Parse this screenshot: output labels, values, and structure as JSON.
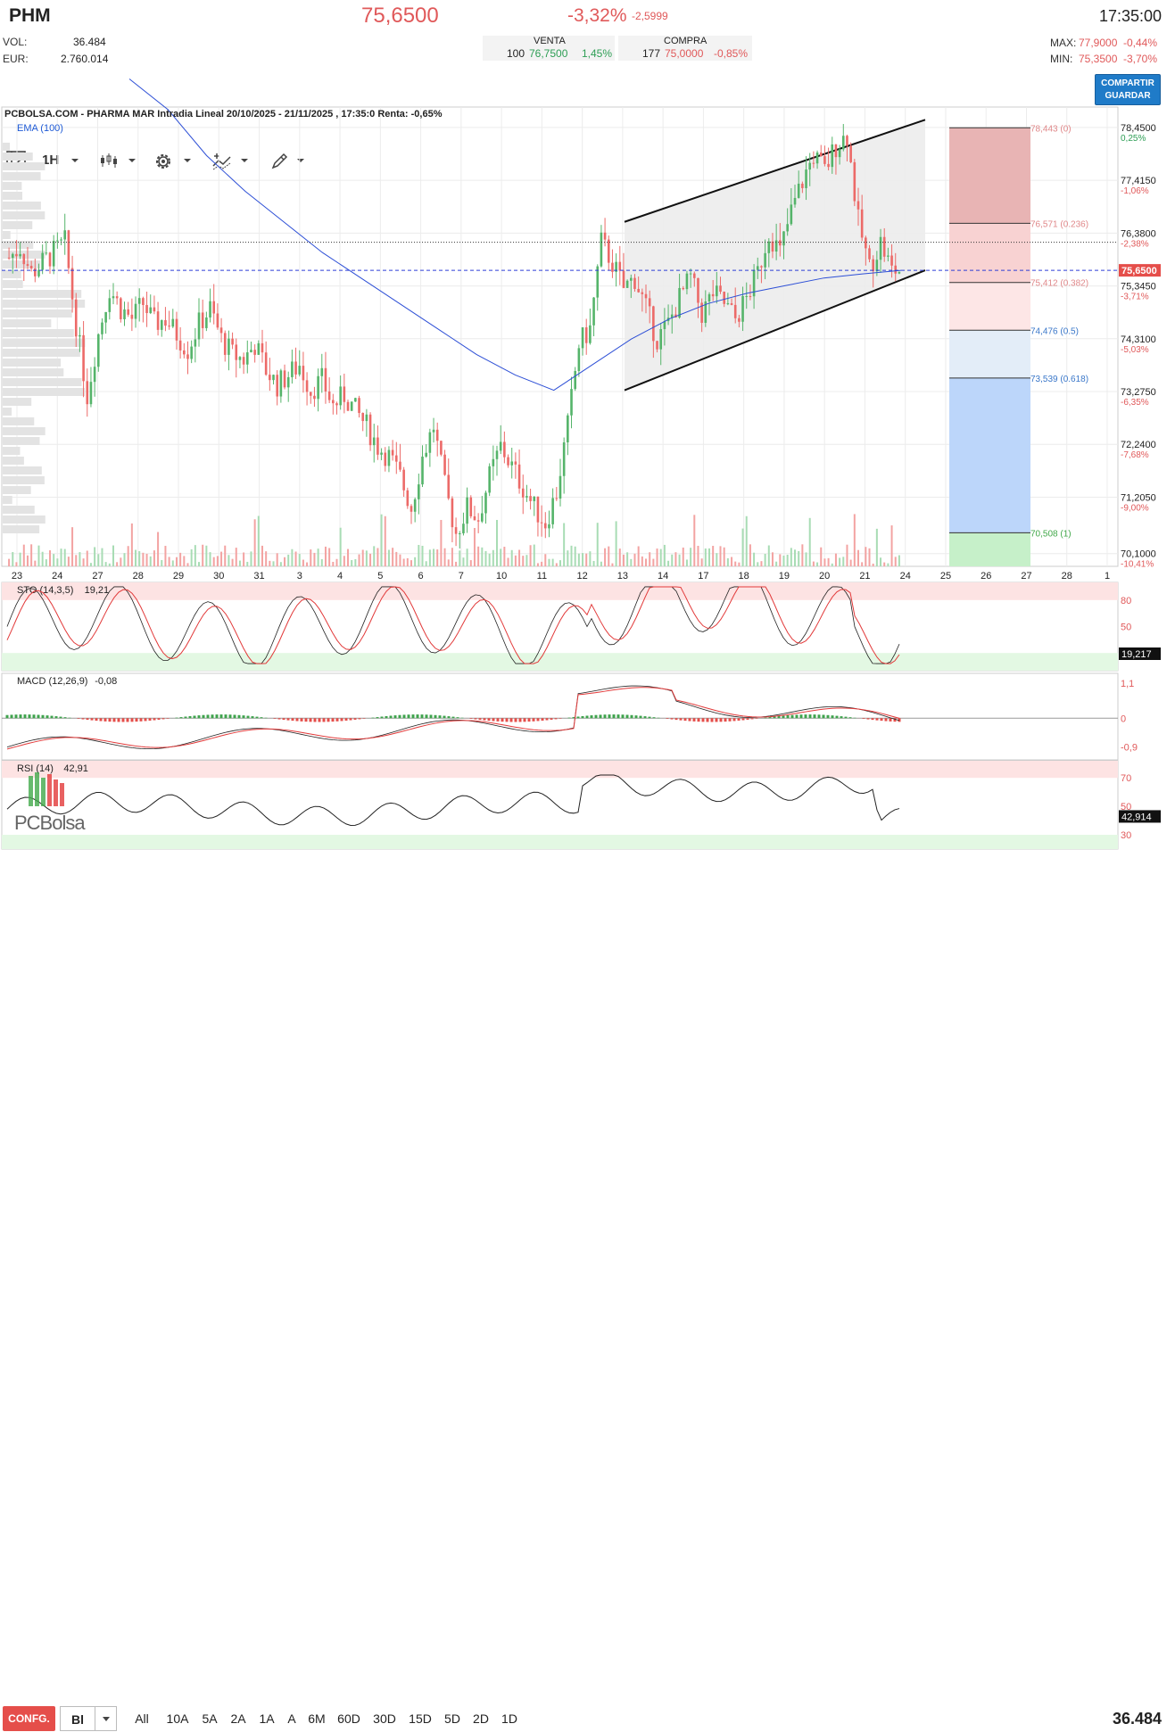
{
  "header": {
    "symbol": "PHM",
    "price": "75,6500",
    "change_pct": "-3,32%",
    "change_abs": "-2,5999",
    "time": "17:35:00",
    "vol_label": "VOL:",
    "vol_value": "36.484",
    "eur_label": "EUR:",
    "eur_value": "2.760.014",
    "venta_label": "VENTA",
    "venta_qty": "100",
    "venta_price": "76,7500",
    "venta_pct": "1,45%",
    "compra_label": "COMPRA",
    "compra_qty": "177",
    "compra_price": "75,0000",
    "compra_pct": "-0,85%",
    "max_label": "MAX:",
    "max_value": "77,9000",
    "max_pct": "-0,44%",
    "min_label": "MIN:",
    "min_value": "75,3500",
    "min_pct": "-3,70%",
    "share_label": "COMPARTIR",
    "save_label": "GUARDAR"
  },
  "toolbar": {
    "timeframe": "1H"
  },
  "chart_data": [
    {
      "type": "candlestick",
      "title": "PCBOLSA.COM - PHARMA MAR Intradia Lineal 20/10/2025 - 21/11/2025 , 17:35:0 Renta: -0,65%",
      "indicator_label": "EMA (100)",
      "x_tick_labels": [
        "23",
        "24",
        "27",
        "28",
        "29",
        "30",
        "31",
        "3",
        "4",
        "5",
        "6",
        "7",
        "10",
        "11",
        "12",
        "13",
        "14",
        "17",
        "18",
        "19",
        "20",
        "21",
        "24",
        "25",
        "26",
        "27",
        "28",
        "1"
      ],
      "y_ticks": [
        {
          "value": 78.45,
          "label": "78,4500",
          "pct": "0,25%"
        },
        {
          "value": 77.415,
          "label": "77,4150",
          "pct": "-1,06%"
        },
        {
          "value": 76.38,
          "label": "76,3800",
          "pct": "-2,38%"
        },
        {
          "value": 75.345,
          "label": "75,3450",
          "pct": "-3,71%"
        },
        {
          "value": 74.31,
          "label": "74,3100",
          "pct": "-5,03%"
        },
        {
          "value": 73.275,
          "label": "73,2750",
          "pct": "-6,35%"
        },
        {
          "value": 72.24,
          "label": "72,2400",
          "pct": "-7,68%"
        },
        {
          "value": 71.205,
          "label": "71,2050",
          "pct": "-9,00%"
        },
        {
          "value": 70.1,
          "label": "70,1000",
          "pct": "-10,41%"
        }
      ],
      "ylim": [
        69.85,
        78.85
      ],
      "last_price_label": "75,6500",
      "last_price": 75.65,
      "fibonacci": [
        {
          "label": "78,443 (0)",
          "value": 78.443
        },
        {
          "label": "76,571 (0.236)",
          "value": 76.571
        },
        {
          "label": "75,412 (0.382)",
          "value": 75.412
        },
        {
          "label": "74,476 (0.5)",
          "value": 74.476
        },
        {
          "label": "73,539 (0.618)",
          "value": 73.539
        },
        {
          "label": "70,508 (1)",
          "value": 70.508
        }
      ],
      "close_path": [
        75.9,
        76.1,
        75.6,
        75.8,
        76.0,
        76.2,
        74.6,
        73.2,
        74.4,
        75.3,
        74.9,
        74.7,
        75.0,
        74.6,
        74.7,
        74.4,
        74.1,
        74.6,
        74.9,
        74.3,
        74.0,
        73.9,
        74.2,
        73.7,
        73.4,
        73.6,
        73.8,
        73.3,
        73.5,
        73.0,
        73.2,
        72.9,
        72.6,
        72.2,
        72.0,
        71.6,
        71.0,
        72.0,
        72.6,
        71.4,
        70.5,
        71.0,
        70.8,
        71.6,
        72.2,
        71.8,
        71.4,
        71.0,
        70.7,
        71.3,
        72.6,
        74.2,
        74.5,
        76.2,
        75.8,
        75.3,
        75.5,
        74.9,
        74.3,
        74.6,
        75.1,
        75.5,
        74.8,
        75.2,
        75.0,
        74.7,
        75.1,
        75.6,
        76.4,
        76.0,
        76.8,
        77.4,
        77.9,
        77.6,
        78.1,
        78.3,
        76.6,
        75.7,
        76.2,
        75.65
      ],
      "ema_path": [
        79.4,
        78.8,
        77.9,
        77.2,
        76.6,
        76.0,
        75.5,
        75.0,
        74.5,
        74.0,
        73.6,
        73.3,
        73.8,
        74.3,
        74.7,
        75.0,
        75.2,
        75.35,
        75.5,
        75.58,
        75.65
      ],
      "channel_upper": [
        76.6,
        78.6
      ],
      "channel_lower": [
        73.3,
        75.65
      ]
    },
    {
      "type": "line",
      "name": "STO (14,3,5)",
      "value_label": "19,21",
      "y_ticks": [
        {
          "value": 80,
          "label": "80"
        },
        {
          "value": 50,
          "label": "50"
        }
      ],
      "last_label": "19,217",
      "ylim": [
        0,
        100
      ]
    },
    {
      "type": "bar",
      "name": "MACD (12,26,9)",
      "value_label": "-0,08",
      "y_ticks": [
        {
          "value": 1.1,
          "label": "1,1"
        },
        {
          "value": 0,
          "label": "0"
        },
        {
          "value": -0.9,
          "label": "-0,9"
        }
      ],
      "ylim": [
        -1.3,
        1.4
      ]
    },
    {
      "type": "line",
      "name": "RSI (14)",
      "value_label": "42,91",
      "y_ticks": [
        {
          "value": 70,
          "label": "70"
        },
        {
          "value": 50,
          "label": "50"
        },
        {
          "value": 30,
          "label": "30"
        }
      ],
      "last_label": "42,914",
      "ylim": [
        20,
        82
      ]
    }
  ],
  "watermark": "PCBolsa",
  "bottom": {
    "config_label": "CONFG.",
    "mode_label": "Bl",
    "periods": [
      "All",
      "10A",
      "5A",
      "2A",
      "1A",
      "A",
      "6M",
      "60D",
      "30D",
      "15D",
      "5D",
      "2D",
      "1D"
    ],
    "volume": "36.484"
  }
}
